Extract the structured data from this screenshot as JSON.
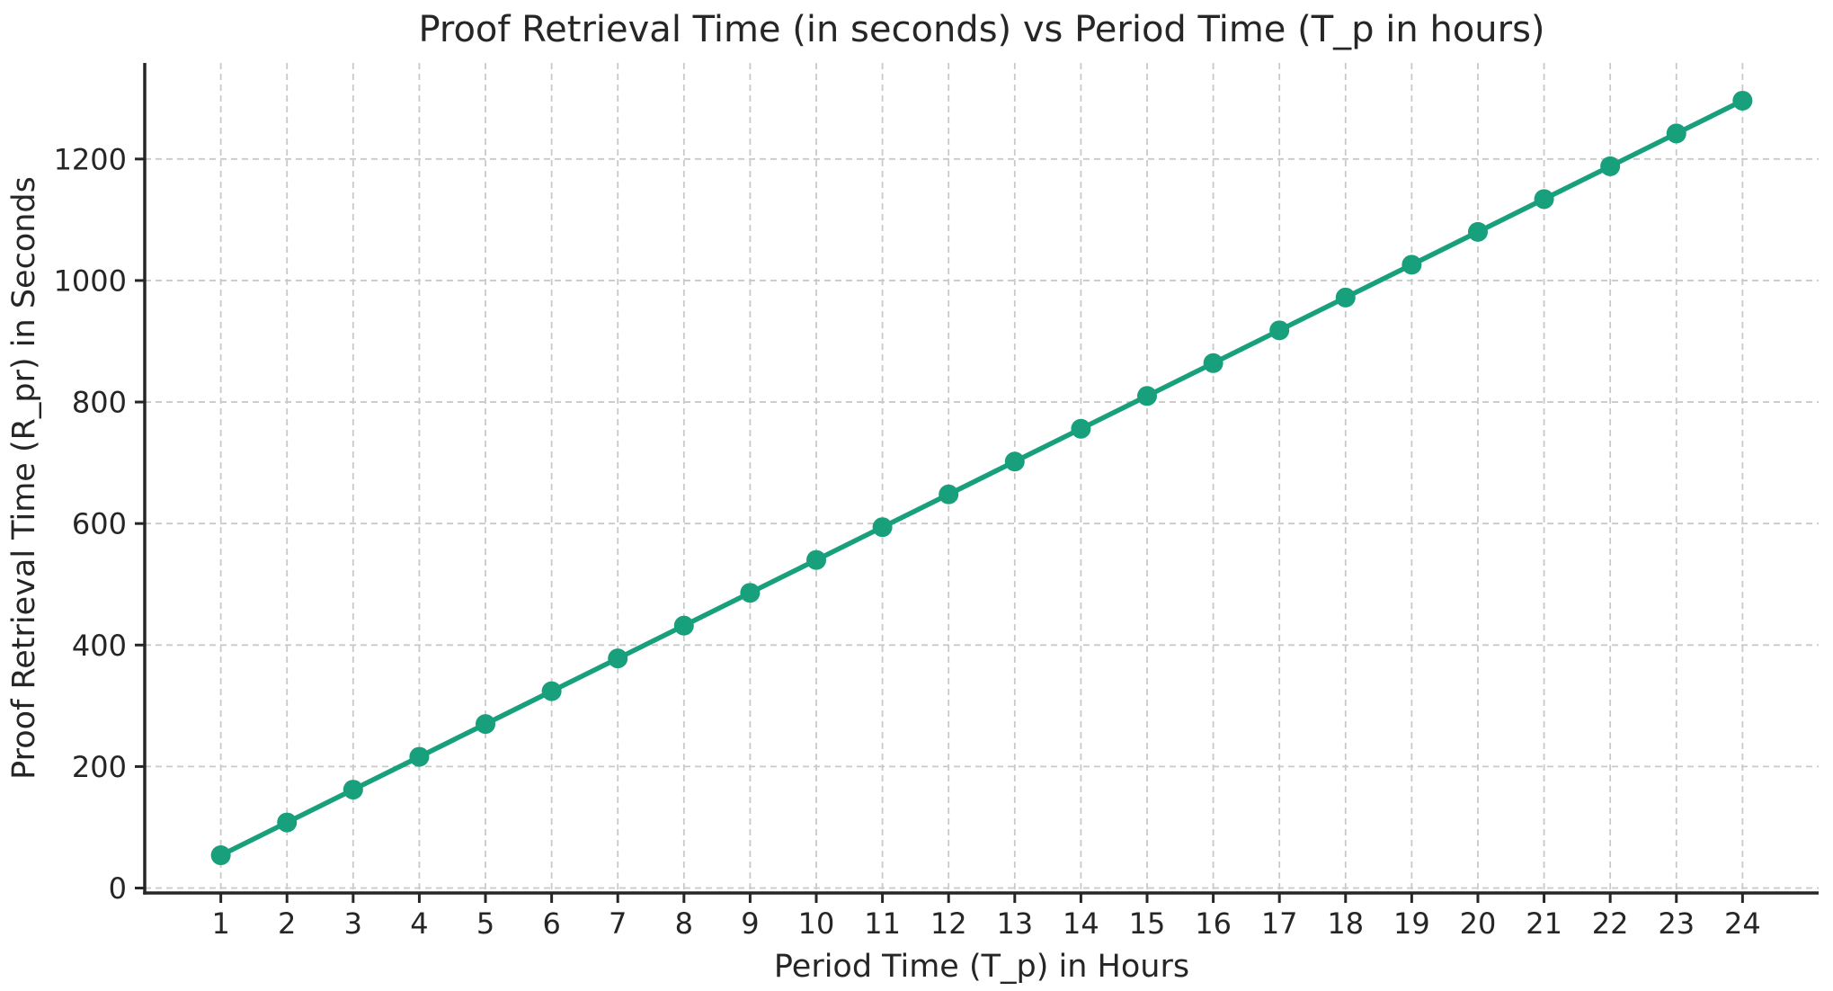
{
  "chart_data": {
    "type": "line",
    "title": "Proof Retrieval Time (in seconds) vs Period Time (T_p in hours)",
    "xlabel": "Period Time (T_p) in Hours",
    "ylabel": "Proof Retrieval Time (R_pr) in Seconds",
    "x": [
      1,
      2,
      3,
      4,
      5,
      6,
      7,
      8,
      9,
      10,
      11,
      12,
      13,
      14,
      15,
      16,
      17,
      18,
      19,
      20,
      21,
      22,
      23,
      24
    ],
    "y": [
      54,
      108,
      162,
      216,
      270,
      324,
      378,
      432,
      486,
      540,
      594,
      648,
      702,
      756,
      810,
      864,
      918,
      972,
      1026,
      1080,
      1134,
      1188,
      1242,
      1296
    ],
    "xticks": [
      1,
      2,
      3,
      4,
      5,
      6,
      7,
      8,
      9,
      10,
      11,
      12,
      13,
      14,
      15,
      16,
      17,
      18,
      19,
      20,
      21,
      22,
      23,
      24
    ],
    "yticks": [
      0,
      200,
      400,
      600,
      800,
      1000,
      1200
    ],
    "xlim": [
      -0.15,
      25.15
    ],
    "ylim": [
      -8.1,
      1358.1
    ],
    "grid": true,
    "grid_style": "dashed",
    "legend_position": "none",
    "line_color": "#17a07b",
    "marker": "circle",
    "marker_radius": 11,
    "line_width": 5.5,
    "grid_color": "#c9c9c9",
    "spine_color": "#262626",
    "text_color": "#262626",
    "background_color": "#ffffff"
  }
}
